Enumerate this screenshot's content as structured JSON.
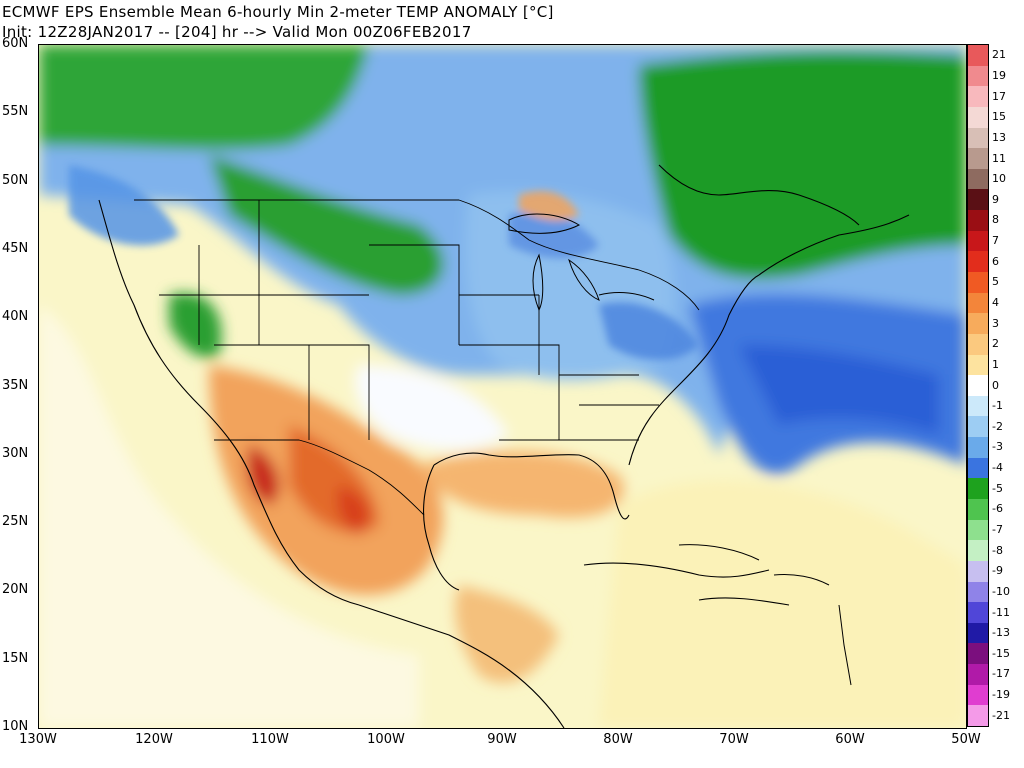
{
  "header": {
    "line1": "ECMWF EPS Ensemble Mean 6-hourly Min 2-meter TEMP ANOMALY [°C]",
    "line2": "Init: 12Z28JAN2017 -- [204] hr --> Valid Mon 00Z06FEB2017"
  },
  "axes": {
    "latitudes": [
      "60N",
      "55N",
      "50N",
      "45N",
      "40N",
      "35N",
      "30N",
      "25N",
      "20N",
      "15N",
      "10N"
    ],
    "longitudes": [
      "130W",
      "120W",
      "110W",
      "100W",
      "90W",
      "80W",
      "70W",
      "60W",
      "50W"
    ]
  },
  "colorbar": {
    "labels": [
      "21",
      "19",
      "17",
      "15",
      "13",
      "11",
      "10",
      "9",
      "8",
      "7",
      "6",
      "5",
      "4",
      "3",
      "2",
      "1",
      "0",
      "-1",
      "-2",
      "-3",
      "-4",
      "-5",
      "-6",
      "-7",
      "-8",
      "-9",
      "-10",
      "-11",
      "-13",
      "-15",
      "-17",
      "-19",
      "-21"
    ],
    "colors": [
      "#e8595b",
      "#f08a8e",
      "#f8b9bd",
      "#f4d9d5",
      "#d8bfb6",
      "#b89a8e",
      "#8e6b60",
      "#5a1015",
      "#9a0e14",
      "#c8171a",
      "#e22d1c",
      "#f05a23",
      "#f3853a",
      "#f7ab5c",
      "#fbc97f",
      "#fde39f",
      "#ffffff",
      "#cce9fa",
      "#9dcdf3",
      "#6aaaea",
      "#3a74e0",
      "#1ea21e",
      "#4fc44f",
      "#8ee08e",
      "#c4f0c4",
      "#c7bff0",
      "#8f83e8",
      "#5046d8",
      "#201aa6",
      "#7b0f7e",
      "#b01aa8",
      "#e03dd0",
      "#f49ae8"
    ]
  },
  "map_fields": {
    "ocean_background": "#f8f3b4",
    "cold_core": "#1f9a27",
    "cool": "#3f78df",
    "warm": "#f2a35b",
    "hot": "#d8401f"
  }
}
